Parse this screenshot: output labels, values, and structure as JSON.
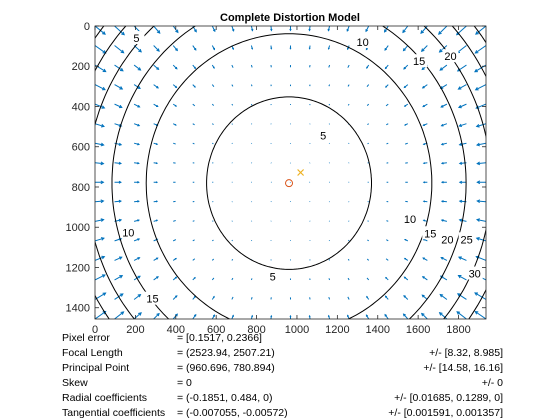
{
  "chart_data": {
    "type": "contour",
    "title": "Complete Distortion Model",
    "xlim": [
      0,
      1936
    ],
    "ylim": [
      0,
      1456
    ],
    "y_reversed": true,
    "x_ticks": [
      0,
      200,
      400,
      600,
      800,
      1000,
      1200,
      1400,
      1600,
      1800
    ],
    "y_ticks": [
      0,
      200,
      400,
      600,
      800,
      1000,
      1200,
      1400
    ],
    "principal_point": [
      960.696,
      780.894
    ],
    "image_center": [
      1018,
      728
    ],
    "contours": [
      {
        "level": 5,
        "label_text": "5",
        "label_points": [
          [
            1130,
            545
          ],
          [
            880,
            1245
          ],
          [
            205,
            60
          ]
        ]
      },
      {
        "level": 10,
        "label_text": "10",
        "label_points": [
          [
            1325,
            80
          ],
          [
            165,
            1025
          ],
          [
            1560,
            960
          ]
        ]
      },
      {
        "level": 15,
        "label_text": "15",
        "label_points": [
          [
            1605,
            175
          ],
          [
            285,
            1355
          ],
          [
            1660,
            1030
          ]
        ]
      },
      {
        "level": 20,
        "label_text": "20",
        "label_points": [
          [
            1760,
            150
          ],
          [
            1745,
            1060
          ]
        ]
      },
      {
        "level": 25,
        "label_text": "25",
        "label_points": [
          [
            1840,
            1060
          ]
        ]
      },
      {
        "level": 30,
        "label_text": "30",
        "label_points": [
          [
            1880,
            1230
          ]
        ]
      }
    ],
    "center_labels": [
      {
        "text": "5",
        "point": [
          1120,
          540
        ]
      },
      {
        "text": "5",
        "point": [
          230,
          80
        ]
      }
    ],
    "stats": [
      {
        "name": "Pixel error",
        "value": "= [0.1517, 0.2366]",
        "error": ""
      },
      {
        "name": "Focal Length",
        "value": "= (2523.94, 2507.21)",
        "error": "+/- [8.32, 8.985]"
      },
      {
        "name": "Principal Point",
        "value": "= (960.696, 780.894)",
        "error": "+/- [14.58, 16.16]"
      },
      {
        "name": "Skew",
        "value": "= 0",
        "error": "+/- 0"
      },
      {
        "name": "Radial coefficients",
        "value": "= (-0.1851, 0.484, 0)",
        "error": "+/- [0.01685, 0.1289, 0]"
      },
      {
        "name": "Tangential coefficients",
        "value": "= (-0.007055, -0.00572)",
        "error": "+/- [0.001591, 0.001357]"
      }
    ],
    "colors": {
      "arrow": "#0072bd",
      "contour": "#000000",
      "principal_point_marker": "#d95319",
      "center_marker": "#edb120"
    }
  }
}
